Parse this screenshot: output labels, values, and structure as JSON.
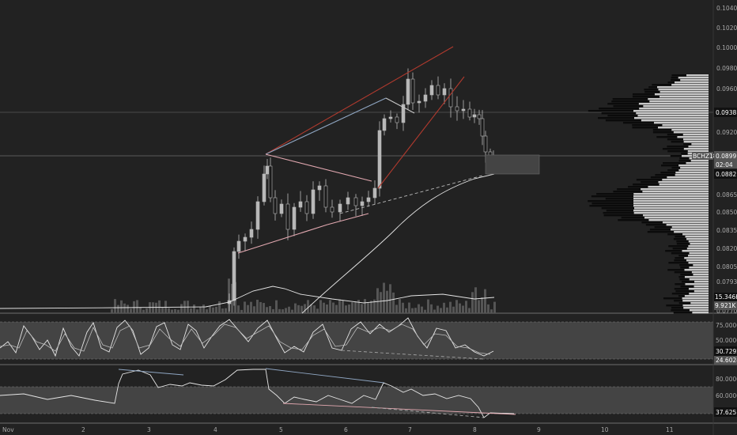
{
  "colors": {
    "background": "#222222",
    "grid": "#2c2c2c",
    "candle": "#b8b8b8",
    "wick": "#d0d0d0",
    "trend_red": "#b03a2e",
    "trend_blue": "#8fa6c2",
    "trend_pink": "#e2a8b0",
    "volume": "#555555",
    "profile_light": "#c8c8c8",
    "profile_dark": "#0b0b0b",
    "osc_fill": "#444444",
    "line_white": "#e6e6e6"
  },
  "price_axis": {
    "ticks": [
      "0.1040",
      "0.1020",
      "0.1000",
      "0.0980",
      "0.0960",
      "0.0920",
      "0.0865",
      "0.0850",
      "0.0835",
      "0.0820",
      "0.0805",
      "0.0793",
      "0.0770"
    ],
    "last_price": "0.0938",
    "symbol_badge": "BCHZ18",
    "current_price": "0.0899",
    "countdown": "02:04",
    "marker_price": "0.0882",
    "volume_label_1": "15.346K",
    "volume_label_2": "9.921K"
  },
  "stoch_axis": {
    "ticks": [
      "75.0000",
      "50.0000"
    ],
    "value_1": "30.7292",
    "value_2": "24.6024"
  },
  "rsi_axis": {
    "ticks": [
      "80.0000",
      "60.0000"
    ],
    "value": "37.6251"
  },
  "time_axis": {
    "labels": [
      "Nov",
      "2",
      "3",
      "4",
      "5",
      "6",
      "7",
      "8",
      "9",
      "10",
      "11"
    ]
  },
  "chart_data": {
    "type": "candlestick",
    "symbol": "BCHZ18",
    "x_labels": [
      "Nov",
      "2",
      "3",
      "4",
      "5",
      "6",
      "7",
      "8",
      "9",
      "10",
      "11"
    ],
    "price_range": [
      0.077,
      0.104
    ],
    "last_price": 0.0899,
    "levels": [
      0.0938,
      0.0899,
      0.0882
    ],
    "panels": [
      {
        "name": "stochastic",
        "ticks": [
          75,
          50
        ],
        "values": [
          30.7292,
          24.6024
        ]
      },
      {
        "name": "rsi",
        "ticks": [
          80,
          60
        ],
        "value": 37.6251
      }
    ],
    "volume_labels": [
      "15.346K",
      "9.921K"
    ],
    "grid": false
  }
}
